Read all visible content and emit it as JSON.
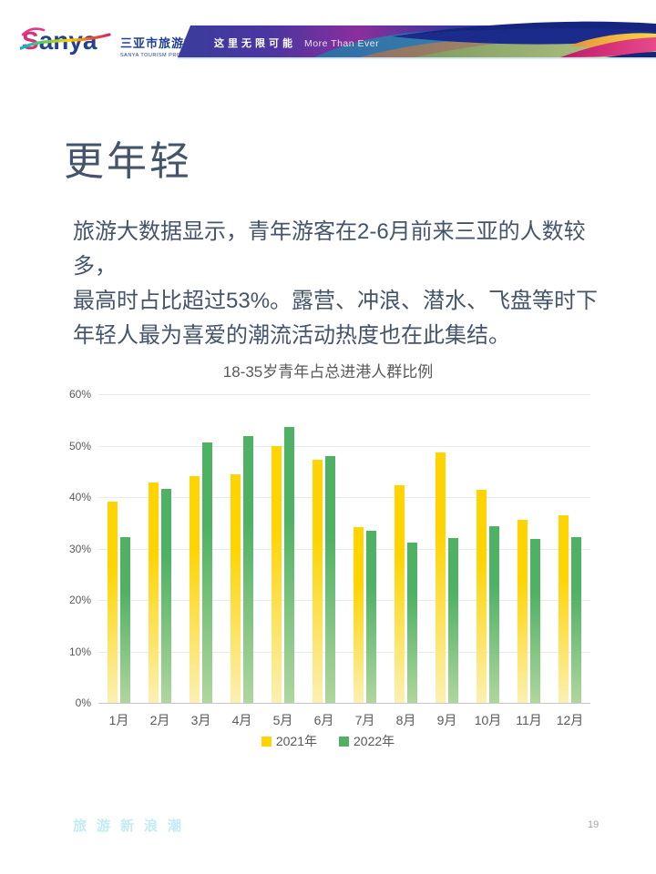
{
  "header": {
    "logo_text_first": "S",
    "logo_text_rest": "anya",
    "org_name_zh": "三亚市旅游推广局",
    "org_name_en": "SANYA TOURISM PROMOTION BOARD",
    "slogan_zh": "这里无限可能",
    "slogan_en": "More Than Ever"
  },
  "main": {
    "title": "更年轻",
    "paragraph_lines": [
      "旅游大数据显示，青年游客在2-6月前来三亚的人数较多，",
      "最高时占比超过53%。露营、冲浪、潜水、飞盘等时下",
      "年轻人最为喜爱的潮流活动热度也在此集结。"
    ]
  },
  "chart_data": {
    "type": "bar",
    "title": "18-35岁青年占总进港人群比例",
    "categories": [
      "1月",
      "2月",
      "3月",
      "4月",
      "5月",
      "6月",
      "7月",
      "8月",
      "9月",
      "10月",
      "11月",
      "12月"
    ],
    "series": [
      {
        "name": "2021年",
        "color_top": "#FFD400",
        "color_bottom": "#FCF0B2",
        "values": [
          39.1,
          42.9,
          44.1,
          44.5,
          49.9,
          47.3,
          34.2,
          42.3,
          48.6,
          41.5,
          35.5,
          36.5
        ]
      },
      {
        "name": "2022年",
        "color_top": "#4EB163",
        "color_bottom": "#AFD69E",
        "values": [
          32.3,
          41.6,
          50.6,
          51.9,
          53.7,
          47.9,
          33.4,
          31.2,
          32.0,
          34.3,
          31.9,
          32.2
        ]
      }
    ],
    "xlabel": "",
    "ylabel": "",
    "ylim": [
      0,
      60
    ],
    "ytick_step": 10,
    "ytick_labels": [
      "0%",
      "10%",
      "20%",
      "30%",
      "40%",
      "50%",
      "60%"
    ],
    "grid": true,
    "legend_position": "bottom"
  },
  "footer": {
    "tagline": "旅游新浪潮",
    "page_number": "19"
  }
}
